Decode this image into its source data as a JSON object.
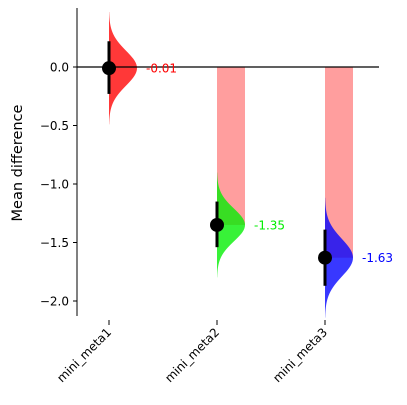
{
  "chart_data": {
    "type": "scatter",
    "title": "",
    "xlabel": "",
    "ylabel": "Mean difference",
    "ylim": [
      -2.12,
      0.5
    ],
    "yticks": [
      0.0,
      -0.5,
      -1.0,
      -1.5,
      -2.0
    ],
    "ytick_labels": [
      "0.0",
      "−0.5",
      "−1.0",
      "−1.5",
      "−2.0"
    ],
    "categories": [
      "mini_meta1",
      "mini_meta2",
      "mini_meta3"
    ],
    "points": [
      {
        "category": "mini_meta1",
        "value": -0.01,
        "ci": [
          -0.23,
          0.22
        ],
        "value_label": "-0.01",
        "color": "#ff0000",
        "dist_sd": 0.15,
        "bar_color": "#ff9999"
      },
      {
        "category": "mini_meta2",
        "value": -1.35,
        "ci": [
          -1.54,
          -1.15
        ],
        "value_label": "-1.35",
        "color": "#00ee00",
        "dist_sd": 0.14,
        "bar_color": "#ff9999"
      },
      {
        "category": "mini_meta3",
        "value": -1.63,
        "ci": [
          -1.87,
          -1.39
        ],
        "value_label": "-1.63",
        "color": "#0000ff",
        "dist_sd": 0.16,
        "bar_color": "#ff9999"
      }
    ],
    "reference_line": 0.0,
    "grid": false
  }
}
